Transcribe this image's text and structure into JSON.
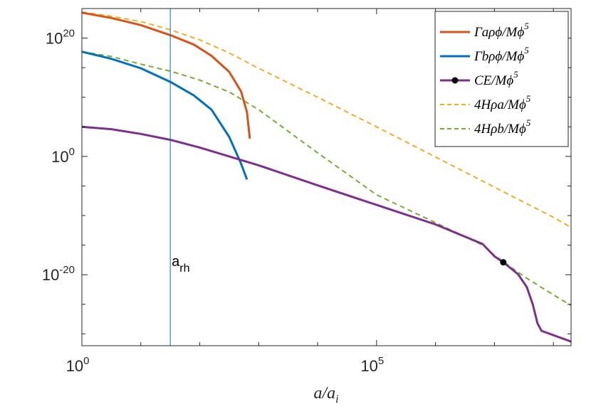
{
  "chart_data": {
    "type": "line",
    "title": "",
    "xlabel": "a/a",
    "xlabel_sub": "i",
    "ylabel": "",
    "xscale": "log",
    "yscale": "log",
    "xlim_exp": [
      0,
      8.3
    ],
    "ylim_exp": [
      -32,
      25
    ],
    "xticks": [
      {
        "base": "10",
        "exp": "0",
        "value": 0
      },
      {
        "base": "10",
        "exp": "5",
        "value": 5
      }
    ],
    "yticks": [
      {
        "base": "10",
        "exp": "20",
        "value": 20
      },
      {
        "base": "10",
        "exp": "0",
        "value": 0
      },
      {
        "base": "10",
        "exp": "-20",
        "value": -20
      }
    ],
    "grid": false,
    "legend_position": "top-right",
    "series": [
      {
        "name_main": "Γaρϕ/Mϕ",
        "name_sup": "5",
        "color": "#D95319",
        "style": "solid",
        "width": 3,
        "points": [
          [
            0.0,
            24.3
          ],
          [
            0.5,
            23.4
          ],
          [
            1.0,
            22.2
          ],
          [
            1.5,
            20.5
          ],
          [
            1.9,
            18.9
          ],
          [
            2.2,
            17.0
          ],
          [
            2.5,
            14.3
          ],
          [
            2.7,
            11.0
          ],
          [
            2.8,
            7.5
          ],
          [
            2.85,
            3.0
          ]
        ]
      },
      {
        "name_main": "Γbρϕ/Mϕ",
        "name_sup": "5",
        "color": "#0072BD",
        "style": "solid",
        "width": 3,
        "points": [
          [
            0.0,
            17.7
          ],
          [
            0.5,
            16.5
          ],
          [
            1.0,
            14.9
          ],
          [
            1.5,
            12.6
          ],
          [
            1.9,
            10.3
          ],
          [
            2.2,
            7.9
          ],
          [
            2.5,
            3.3
          ],
          [
            2.7,
            -1.2
          ],
          [
            2.8,
            -3.9
          ]
        ]
      },
      {
        "name_main": "CE/Mϕ",
        "name_sup": "5",
        "color": "#7E2F8E",
        "style": "solid",
        "width": 3,
        "marker": true,
        "points": [
          [
            0.0,
            5.0
          ],
          [
            0.5,
            4.6
          ],
          [
            1.0,
            3.8
          ],
          [
            1.5,
            2.8
          ],
          [
            2.0,
            1.5
          ],
          [
            2.5,
            0.0
          ],
          [
            3.0,
            -1.5
          ],
          [
            4.0,
            -4.9
          ],
          [
            5.0,
            -8.2
          ],
          [
            6.0,
            -11.5
          ],
          [
            6.8,
            -14.8
          ],
          [
            7.0,
            -16.9
          ],
          [
            7.15,
            -17.9
          ],
          [
            7.4,
            -19.9
          ],
          [
            7.55,
            -22.1
          ],
          [
            7.65,
            -25.0
          ],
          [
            7.73,
            -28.2
          ],
          [
            7.8,
            -29.5
          ],
          [
            8.3,
            -31.3
          ]
        ]
      },
      {
        "name_main": "4Hρa/Mϕ",
        "name_sup": "5",
        "color": "#EDB120",
        "style": "dashed",
        "width": 2,
        "points": [
          [
            0.0,
            24.4
          ],
          [
            0.5,
            23.7
          ],
          [
            1.0,
            22.8
          ],
          [
            1.5,
            21.4
          ],
          [
            2.0,
            19.7
          ],
          [
            2.5,
            17.5
          ],
          [
            3.0,
            14.9
          ],
          [
            4.0,
            10.0
          ],
          [
            5.0,
            5.0
          ],
          [
            6.0,
            -0.1
          ],
          [
            7.0,
            -5.2
          ],
          [
            8.0,
            -10.3
          ],
          [
            8.3,
            -12.0
          ]
        ]
      },
      {
        "name_main": "4Hρb/Mϕ",
        "name_sup": "5",
        "color": "#77AC30",
        "style": "dashed",
        "width": 2,
        "points": [
          [
            0.0,
            17.7
          ],
          [
            0.5,
            16.9
          ],
          [
            1.0,
            15.6
          ],
          [
            1.5,
            14.4
          ],
          [
            2.0,
            12.9
          ],
          [
            2.5,
            10.9
          ],
          [
            3.0,
            7.9
          ],
          [
            4.0,
            0.6
          ],
          [
            5.0,
            -6.5
          ],
          [
            6.0,
            -11.2
          ],
          [
            6.8,
            -15.0
          ],
          [
            7.0,
            -16.7
          ],
          [
            7.5,
            -20.3
          ],
          [
            8.0,
            -23.4
          ],
          [
            8.3,
            -25.2
          ]
        ]
      }
    ],
    "marker_point": [
      7.15,
      -17.9
    ],
    "vline": {
      "x": 1.5,
      "label_main": "a",
      "label_sub": "rh",
      "color": "#0072BD"
    }
  }
}
